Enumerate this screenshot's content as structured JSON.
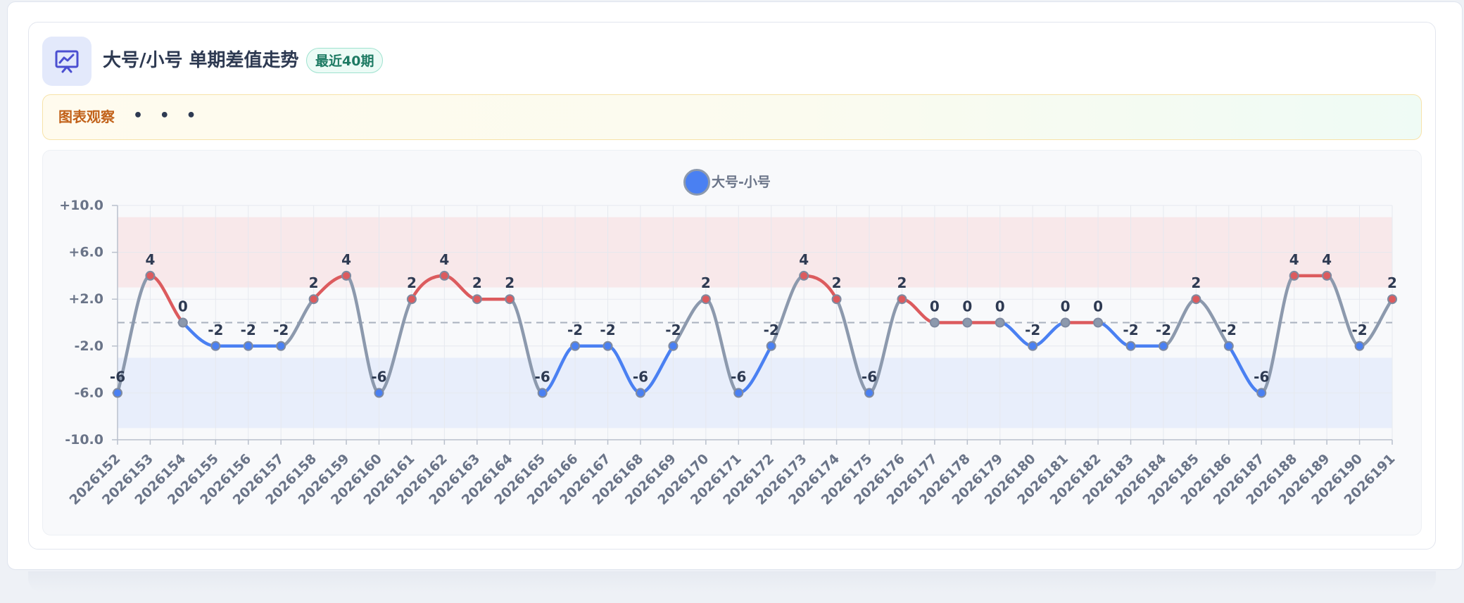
{
  "header": {
    "icon": "presentation-chart-icon",
    "title": "大号/小号 单期差值走势",
    "badge": "最近40期"
  },
  "observation": {
    "label": "图表观察",
    "more": "• • •"
  },
  "colors": {
    "positive": "#dc5b5e",
    "negative": "#4a80f2",
    "neutral": "#8c99ad",
    "band_high": "#f8e8ea",
    "band_low": "#e8eefb"
  },
  "chart_data": {
    "type": "line",
    "legend": "大号-小号",
    "legend_position": "top-center",
    "grid": true,
    "x": [
      "2026152",
      "2026153",
      "2026154",
      "2026155",
      "2026156",
      "2026157",
      "2026158",
      "2026159",
      "2026160",
      "2026161",
      "2026162",
      "2026163",
      "2026164",
      "2026165",
      "2026166",
      "2026167",
      "2026168",
      "2026169",
      "2026170",
      "2026171",
      "2026172",
      "2026173",
      "2026174",
      "2026175",
      "2026176",
      "2026177",
      "2026178",
      "2026179",
      "2026180",
      "2026181",
      "2026182",
      "2026183",
      "2026184",
      "2026185",
      "2026186",
      "2026187",
      "2026188",
      "2026189",
      "2026190",
      "2026191"
    ],
    "series": [
      {
        "name": "大号-小号",
        "values": [
          -6,
          4,
          0,
          -2,
          -2,
          -2,
          2,
          4,
          -6,
          2,
          4,
          2,
          2,
          -6,
          -2,
          -2,
          -6,
          -2,
          2,
          -6,
          -2,
          4,
          2,
          -6,
          2,
          0,
          0,
          0,
          -2,
          0,
          0,
          -2,
          -2,
          2,
          -2,
          -6,
          4,
          4,
          -2,
          2
        ]
      }
    ],
    "ylim": [
      -10,
      10
    ],
    "yticks": [
      "+10.0",
      "+6.0",
      "+2.0",
      "-2.0",
      "-6.0",
      "-10.0"
    ],
    "ytick_values": [
      10,
      6,
      2,
      -2,
      -6,
      -10
    ],
    "bands": [
      {
        "from": 3,
        "to": 9,
        "tone": "high"
      },
      {
        "from": -9,
        "to": -3,
        "tone": "low"
      }
    ],
    "reference_line": 0
  }
}
